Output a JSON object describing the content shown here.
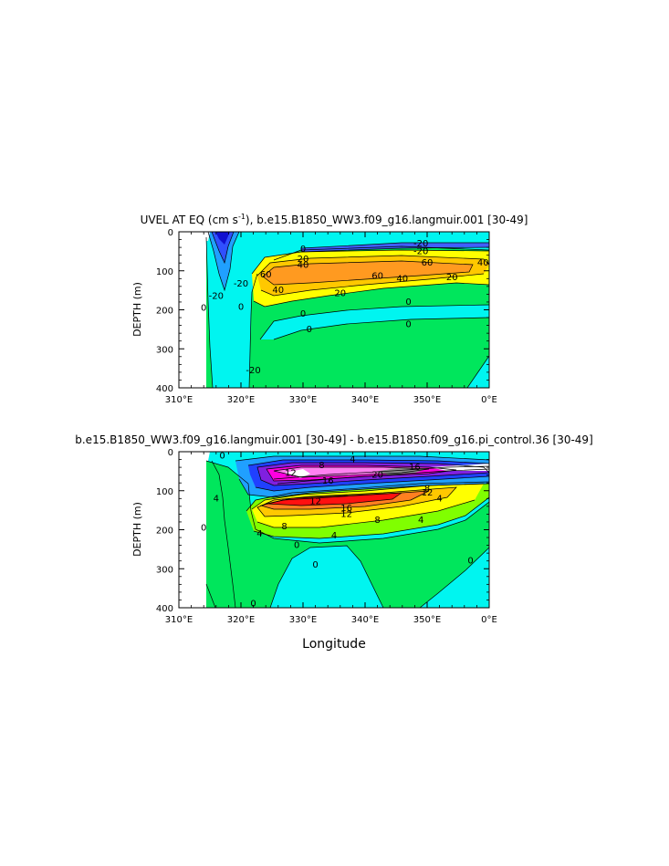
{
  "chart_data": [
    {
      "type": "contour",
      "title": "UVEL AT EQ (cm s",
      "title_superscript": "-1",
      "title_tail": "), b.e15.B1850_WW3.f09_g16.langmuir.001 [30-49]",
      "ylabel": "DEPTH (m)",
      "xlabel": "",
      "x_ticks": [
        "310°E",
        "320°E",
        "330°E",
        "340°E",
        "350°E",
        "0°E"
      ],
      "y_ticks": [
        "0",
        "100",
        "200",
        "300",
        "400"
      ],
      "xlim": [
        310,
        360
      ],
      "ylim": [
        400,
        0
      ],
      "contour_labels": [
        {
          "text": "-20",
          "x": 349,
          "y": 30
        },
        {
          "text": "-20",
          "x": 349,
          "y": 50
        },
        {
          "text": "0",
          "x": 330,
          "y": 45
        },
        {
          "text": "20",
          "x": 330,
          "y": 70
        },
        {
          "text": "40",
          "x": 330,
          "y": 85
        },
        {
          "text": "60",
          "x": 350,
          "y": 80
        },
        {
          "text": "40",
          "x": 359,
          "y": 80
        },
        {
          "text": "60",
          "x": 324,
          "y": 110
        },
        {
          "text": "60",
          "x": 342,
          "y": 113
        },
        {
          "text": "40",
          "x": 346,
          "y": 120
        },
        {
          "text": "20",
          "x": 354,
          "y": 117
        },
        {
          "text": "40",
          "x": 326,
          "y": 150
        },
        {
          "text": "20",
          "x": 336,
          "y": 158
        },
        {
          "text": "0",
          "x": 347,
          "y": 180
        },
        {
          "text": "-20",
          "x": 320,
          "y": 133
        },
        {
          "text": "-20",
          "x": 316,
          "y": 165
        },
        {
          "text": "0",
          "x": 314,
          "y": 195
        },
        {
          "text": "0",
          "x": 320,
          "y": 193
        },
        {
          "text": "0",
          "x": 330,
          "y": 210
        },
        {
          "text": "0",
          "x": 331,
          "y": 250
        },
        {
          "text": "0",
          "x": 347,
          "y": 237
        },
        {
          "text": "-20",
          "x": 322,
          "y": 355
        }
      ]
    },
    {
      "type": "contour",
      "title": "b.e15.B1850_WW3.f09_g16.langmuir.001 [30-49] - b.e15.B1850.f09_g16.pi_control.36 [30-49]",
      "ylabel": "DEPTH (m)",
      "xlabel": "Longitude",
      "x_ticks": [
        "310°E",
        "320°E",
        "330°E",
        "340°E",
        "350°E",
        "0°E"
      ],
      "y_ticks": [
        "0",
        "100",
        "200",
        "300",
        "400"
      ],
      "xlim": [
        310,
        360
      ],
      "ylim": [
        400,
        0
      ],
      "contour_labels": [
        {
          "text": "0",
          "x": 317,
          "y": 10
        },
        {
          "text": "4",
          "x": 338,
          "y": 20
        },
        {
          "text": "8",
          "x": 333,
          "y": 35
        },
        {
          "text": "12",
          "x": 328,
          "y": 55
        },
        {
          "text": "16",
          "x": 334,
          "y": 75
        },
        {
          "text": "20",
          "x": 342,
          "y": 60
        },
        {
          "text": "16",
          "x": 348,
          "y": 40
        },
        {
          "text": "8",
          "x": 350,
          "y": 95
        },
        {
          "text": "12",
          "x": 350,
          "y": 105
        },
        {
          "text": "4",
          "x": 352,
          "y": 120
        },
        {
          "text": "12",
          "x": 332,
          "y": 128
        },
        {
          "text": "16",
          "x": 337,
          "y": 145
        },
        {
          "text": "12",
          "x": 337,
          "y": 160
        },
        {
          "text": "8",
          "x": 342,
          "y": 175
        },
        {
          "text": "4",
          "x": 349,
          "y": 175
        },
        {
          "text": "4",
          "x": 316,
          "y": 120
        },
        {
          "text": "4",
          "x": 323,
          "y": 210
        },
        {
          "text": "8",
          "x": 327,
          "y": 192
        },
        {
          "text": "4",
          "x": 335,
          "y": 215
        },
        {
          "text": "0",
          "x": 329,
          "y": 240
        },
        {
          "text": "0",
          "x": 314,
          "y": 195
        },
        {
          "text": "0",
          "x": 332,
          "y": 290
        },
        {
          "text": "0",
          "x": 357,
          "y": 280
        },
        {
          "text": "0",
          "x": 322,
          "y": 390
        }
      ]
    }
  ]
}
